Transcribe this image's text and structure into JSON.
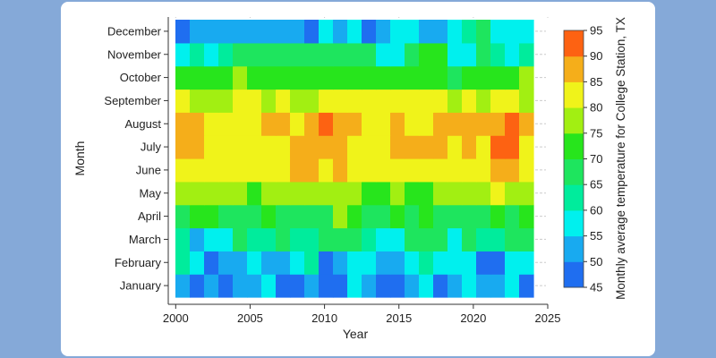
{
  "chart_data": {
    "type": "heatmap",
    "xlabel": "Year",
    "ylabel": "Month",
    "colorbar_label": "Monthly average temperature for College Station, TX",
    "x_ticks": [
      "2000",
      "2005",
      "2010",
      "2015",
      "2020",
      "2025"
    ],
    "x_tick_values": [
      2000,
      2005,
      2010,
      2015,
      2020,
      2025
    ],
    "xlim": [
      1999.5,
      2025
    ],
    "colorbar_ticks": [
      "45",
      "50",
      "55",
      "60",
      "65",
      "70",
      "75",
      "80",
      "85",
      "90",
      "95"
    ],
    "colorbar_range": [
      45,
      95
    ],
    "colorbar_bins": [
      {
        "min": 45,
        "max": 50,
        "color": "#1f6ef0"
      },
      {
        "min": 50,
        "max": 55,
        "color": "#18aaf0"
      },
      {
        "min": 55,
        "max": 60,
        "color": "#00f0ee"
      },
      {
        "min": 60,
        "max": 65,
        "color": "#00ec9c"
      },
      {
        "min": 65,
        "max": 70,
        "color": "#1ee55e"
      },
      {
        "min": 70,
        "max": 75,
        "color": "#27e51c"
      },
      {
        "min": 75,
        "max": 80,
        "color": "#a2ef12"
      },
      {
        "min": 80,
        "max": 85,
        "color": "#f0f31a"
      },
      {
        "min": 85,
        "max": 90,
        "color": "#f5ae1a"
      },
      {
        "min": 90,
        "max": 95,
        "color": "#fd6212"
      }
    ],
    "years": [
      2000,
      2001,
      2002,
      2003,
      2004,
      2005,
      2006,
      2007,
      2008,
      2009,
      2010,
      2011,
      2012,
      2013,
      2014,
      2015,
      2016,
      2017,
      2018,
      2019,
      2020,
      2021,
      2022,
      2023,
      2024
    ],
    "months": [
      "January",
      "February",
      "March",
      "April",
      "May",
      "June",
      "July",
      "August",
      "September",
      "October",
      "November",
      "December"
    ],
    "values": [
      [
        52.5,
        47.5,
        52.5,
        47.5,
        52.5,
        52.5,
        57.5,
        47.5,
        47.5,
        52.5,
        47.5,
        47.5,
        57.5,
        52.5,
        47.5,
        47.5,
        52.5,
        57.5,
        47.5,
        52.5,
        57.5,
        52.5,
        52.5,
        57.5,
        47.5
      ],
      [
        62.5,
        57.5,
        47.5,
        52.5,
        52.5,
        57.5,
        52.5,
        52.5,
        57.5,
        62.5,
        47.5,
        52.5,
        57.5,
        57.5,
        52.5,
        52.5,
        57.5,
        62.5,
        57.5,
        57.5,
        57.5,
        47.5,
        47.5,
        57.5,
        57.5
      ],
      [
        62.5,
        52.5,
        57.5,
        57.5,
        67.5,
        62.5,
        62.5,
        67.5,
        62.5,
        62.5,
        67.5,
        67.5,
        67.5,
        62.5,
        57.5,
        57.5,
        67.5,
        67.5,
        67.5,
        57.5,
        67.5,
        62.5,
        62.5,
        67.5,
        67.5
      ],
      [
        67.5,
        72.5,
        72.5,
        67.5,
        67.5,
        67.5,
        72.5,
        67.5,
        67.5,
        67.5,
        67.5,
        77.5,
        72.5,
        67.5,
        67.5,
        72.5,
        67.5,
        72.5,
        67.5,
        67.5,
        67.5,
        67.5,
        72.5,
        67.5,
        72.5
      ],
      [
        77.5,
        77.5,
        77.5,
        77.5,
        77.5,
        72.5,
        77.5,
        77.5,
        77.5,
        77.5,
        77.5,
        77.5,
        77.5,
        72.5,
        72.5,
        77.5,
        72.5,
        72.5,
        77.5,
        77.5,
        77.5,
        77.5,
        82.5,
        77.5,
        77.5
      ],
      [
        82.5,
        82.5,
        82.5,
        82.5,
        82.5,
        82.5,
        82.5,
        82.5,
        87.5,
        87.5,
        82.5,
        87.5,
        82.5,
        82.5,
        82.5,
        82.5,
        82.5,
        82.5,
        82.5,
        82.5,
        82.5,
        82.5,
        87.5,
        87.5,
        82.5
      ],
      [
        87.5,
        87.5,
        82.5,
        82.5,
        82.5,
        82.5,
        82.5,
        82.5,
        87.5,
        87.5,
        87.5,
        87.5,
        82.5,
        82.5,
        82.5,
        87.5,
        87.5,
        87.5,
        87.5,
        82.5,
        87.5,
        82.5,
        92.5,
        92.5,
        82.5
      ],
      [
        87.5,
        87.5,
        82.5,
        82.5,
        82.5,
        82.5,
        87.5,
        87.5,
        82.5,
        87.5,
        92.5,
        87.5,
        87.5,
        82.5,
        82.5,
        87.5,
        82.5,
        82.5,
        87.5,
        87.5,
        87.5,
        87.5,
        87.5,
        92.5,
        87.5
      ],
      [
        82.5,
        77.5,
        77.5,
        77.5,
        82.5,
        82.5,
        77.5,
        82.5,
        77.5,
        77.5,
        82.5,
        82.5,
        82.5,
        82.5,
        82.5,
        82.5,
        82.5,
        82.5,
        82.5,
        77.5,
        82.5,
        77.5,
        82.5,
        82.5,
        77.5
      ],
      [
        72.5,
        72.5,
        72.5,
        72.5,
        77.5,
        72.5,
        72.5,
        72.5,
        72.5,
        72.5,
        72.5,
        72.5,
        72.5,
        72.5,
        72.5,
        72.5,
        72.5,
        72.5,
        72.5,
        67.5,
        72.5,
        72.5,
        72.5,
        72.5,
        77.5
      ],
      [
        57.5,
        62.5,
        57.5,
        62.5,
        67.5,
        67.5,
        67.5,
        67.5,
        67.5,
        67.5,
        67.5,
        67.5,
        67.5,
        67.5,
        57.5,
        57.5,
        67.5,
        72.5,
        72.5,
        57.5,
        57.5,
        67.5,
        62.5,
        57.5,
        62.5
      ],
      [
        47.5,
        52.5,
        52.5,
        52.5,
        52.5,
        52.5,
        52.5,
        52.5,
        52.5,
        47.5,
        57.5,
        52.5,
        57.5,
        47.5,
        52.5,
        57.5,
        57.5,
        52.5,
        52.5,
        57.5,
        62.5,
        67.5,
        57.5,
        57.5,
        57.5
      ]
    ]
  }
}
